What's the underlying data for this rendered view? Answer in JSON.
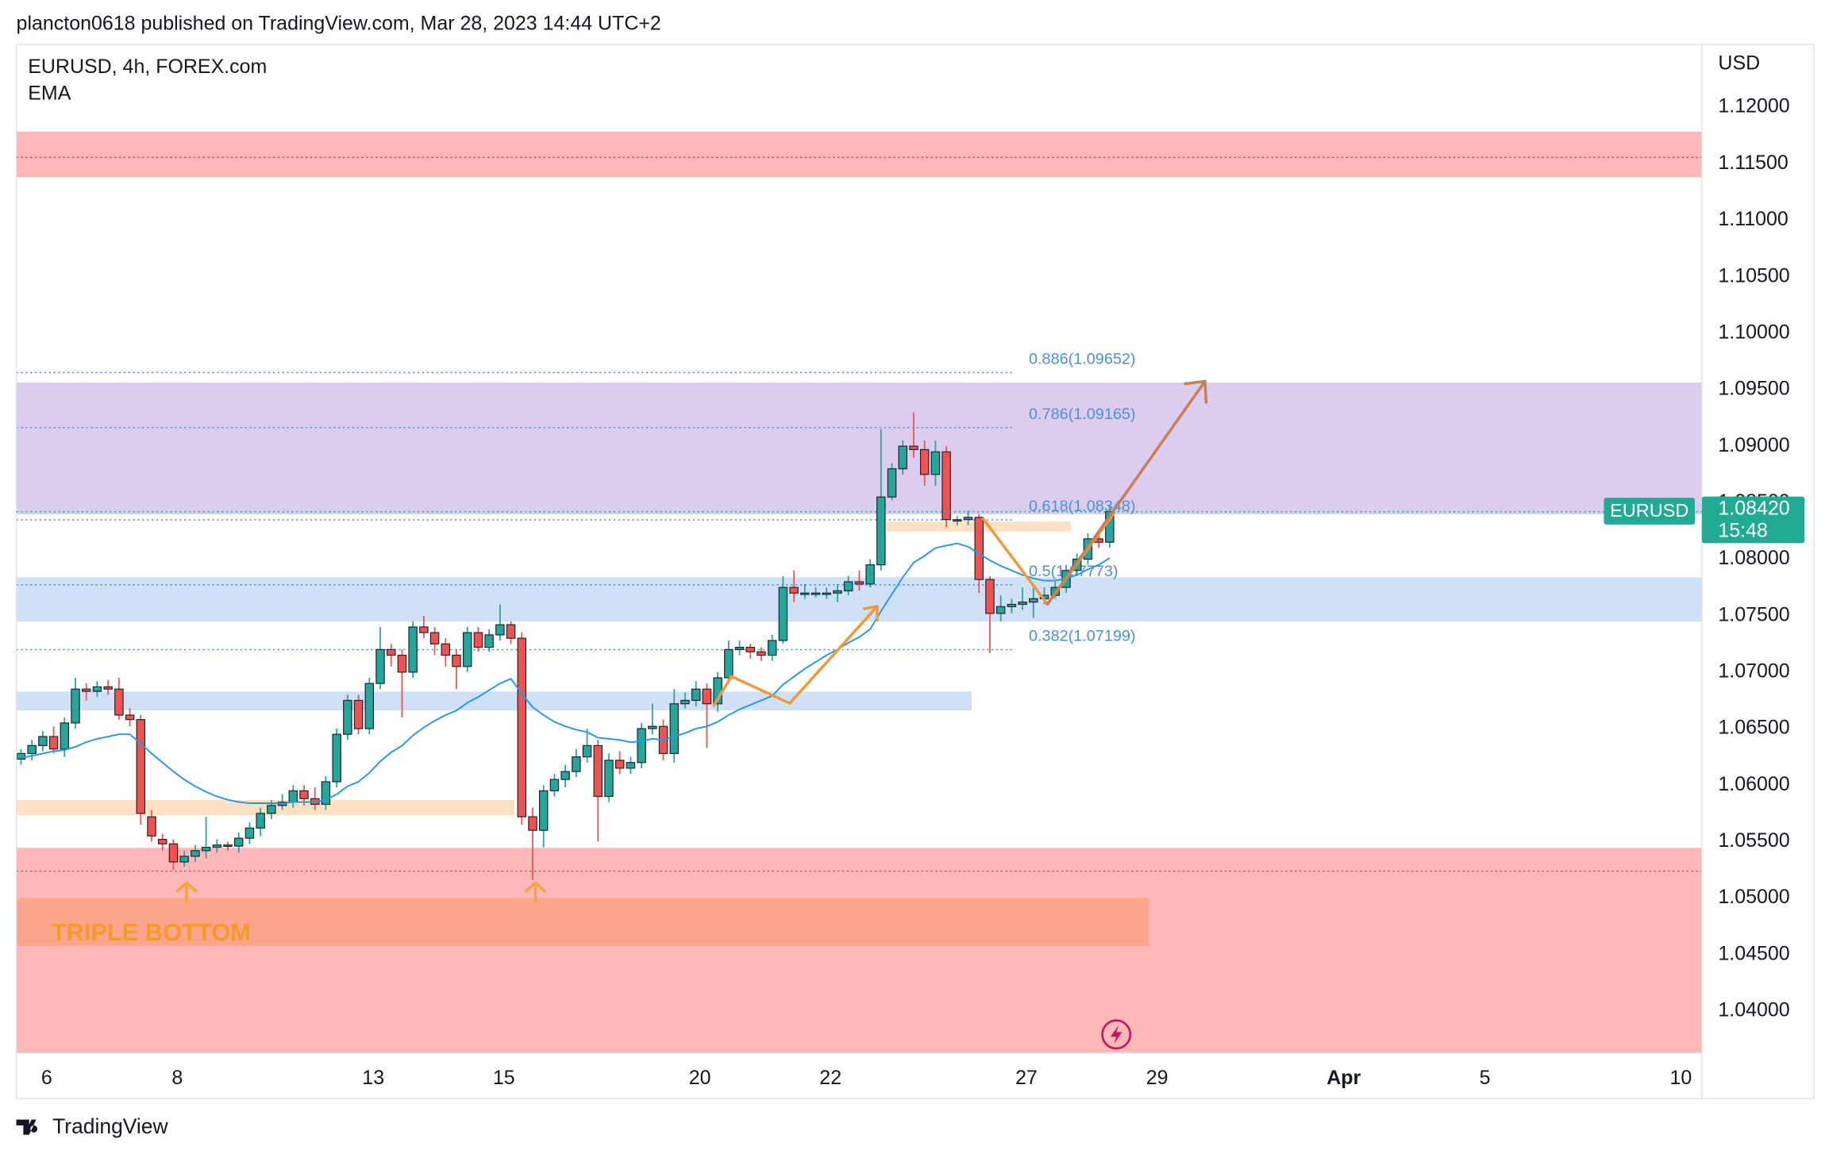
{
  "header": "plancton0618 published on TradingView.com, Mar 28, 2023 14:44 UTC+2",
  "footer": "TradingView",
  "chart_data": {
    "type": "candlestick",
    "title": "EURUSD, 4h, FOREX.com",
    "indicator": "EMA",
    "y_axis_label": "USD",
    "up_color": "#26a69a",
    "down_color": "#ef5350",
    "ema_color": "#2196f3",
    "grid": false,
    "open": [
      1.0623,
      1.0628,
      1.0635,
      1.0643,
      1.0632,
      1.0655,
      1.0685,
      1.0683,
      1.0687,
      1.0685,
      1.0662,
      1.0658,
      1.0572,
      1.0552,
      1.0548,
      1.0532,
      1.0537,
      1.0542,
      1.0545,
      1.0547,
      1.0546,
      1.0553,
      1.0562,
      1.0575,
      1.0582,
      1.0585,
      1.0595,
      1.0588,
      1.0583,
      1.0603,
      1.0645,
      1.0675,
      1.065,
      1.069,
      1.072,
      1.0715,
      1.07,
      1.074,
      1.0735,
      1.0725,
      1.0715,
      1.0705,
      1.0735,
      1.0722,
      1.0733,
      1.0742,
      1.073,
      1.0572,
      1.056,
      1.0595,
      1.0605,
      1.0612,
      1.0625,
      1.0635,
      1.059,
      1.0622,
      1.0615,
      1.062,
      1.065,
      1.0652,
      1.0628,
      1.0672,
      1.0675,
      1.0685,
      1.0672,
      1.0695,
      1.072,
      1.0722,
      1.0718,
      1.0715,
      1.0728,
      1.0775,
      1.077,
      1.077,
      1.077,
      1.077,
      1.0772,
      1.078,
      1.0778,
      1.0795,
      1.0855,
      1.088,
      1.09,
      1.0897,
      1.0875,
      1.0895,
      1.0835,
      1.0835,
      1.0837,
      1.0782,
      1.0752,
      1.0758,
      1.076,
      1.0762,
      1.0765,
      1.0768,
      1.0775,
      1.079,
      1.08,
      1.0818,
      1.0815
    ],
    "high": [
      1.0632,
      1.064,
      1.0648,
      1.0652,
      1.066,
      1.0695,
      1.069,
      1.0692,
      1.0693,
      1.0695,
      1.0668,
      1.0662,
      1.0578,
      1.0557,
      1.0552,
      1.0542,
      1.0547,
      1.0572,
      1.0552,
      1.055,
      1.0558,
      1.0567,
      1.058,
      1.0587,
      1.0592,
      1.06,
      1.06,
      1.0598,
      1.0608,
      1.065,
      1.068,
      1.068,
      1.0695,
      1.074,
      1.0725,
      1.072,
      1.0745,
      1.075,
      1.074,
      1.073,
      1.072,
      1.074,
      1.074,
      1.0738,
      1.076,
      1.0745,
      1.0735,
      1.058,
      1.06,
      1.061,
      1.0618,
      1.0632,
      1.065,
      1.064,
      1.0628,
      1.063,
      1.0625,
      1.0655,
      1.0672,
      1.0658,
      1.0685,
      1.0682,
      1.0692,
      1.069,
      1.07,
      1.0728,
      1.0728,
      1.0725,
      1.0722,
      1.0733,
      1.0785,
      1.079,
      1.0778,
      1.0775,
      1.0775,
      1.0778,
      1.0785,
      1.079,
      1.08,
      1.0915,
      1.0885,
      1.0905,
      1.093,
      1.0905,
      1.0905,
      1.09,
      1.0838,
      1.0843,
      1.084,
      1.0785,
      1.0768,
      1.0765,
      1.0775,
      1.0775,
      1.0775,
      1.078,
      1.0795,
      1.0805,
      1.0823,
      1.0822,
      1.0848
    ],
    "low": [
      1.0618,
      1.0622,
      1.063,
      1.0628,
      1.0625,
      1.065,
      1.0675,
      1.0678,
      1.068,
      1.0658,
      1.0652,
      1.0565,
      1.055,
      1.0542,
      1.0525,
      1.0528,
      1.0532,
      1.0535,
      1.054,
      1.0542,
      1.054,
      1.0548,
      1.0555,
      1.057,
      1.0578,
      1.058,
      1.0582,
      1.0578,
      1.0578,
      1.0598,
      1.064,
      1.0645,
      1.0645,
      1.0685,
      1.0705,
      1.066,
      1.0695,
      1.073,
      1.0715,
      1.0705,
      1.0685,
      1.07,
      1.0718,
      1.0718,
      1.0728,
      1.0725,
      1.0565,
      1.0516,
      1.0545,
      1.059,
      1.0598,
      1.0607,
      1.062,
      1.055,
      1.0585,
      1.061,
      1.061,
      1.0615,
      1.0645,
      1.0622,
      1.062,
      1.0668,
      1.067,
      1.0633,
      1.0665,
      1.069,
      1.0715,
      1.0712,
      1.071,
      1.071,
      1.0725,
      1.0762,
      1.0765,
      1.0766,
      1.0765,
      1.0762,
      1.0768,
      1.0772,
      1.0775,
      1.079,
      1.0852,
      1.0875,
      1.089,
      1.0865,
      1.0865,
      1.0828,
      1.083,
      1.083,
      1.077,
      1.0717,
      1.0745,
      1.0752,
      1.0755,
      1.0748,
      1.076,
      1.0765,
      1.077,
      1.0785,
      1.0795,
      1.081,
      1.081
    ],
    "close": [
      1.0628,
      1.0635,
      1.0643,
      1.0632,
      1.0655,
      1.0685,
      1.0683,
      1.0687,
      1.0685,
      1.0662,
      1.0658,
      1.0575,
      1.0555,
      1.0548,
      1.0532,
      1.0537,
      1.0542,
      1.0545,
      1.0547,
      1.0546,
      1.0553,
      1.0562,
      1.0575,
      1.0582,
      1.0585,
      1.0595,
      1.0588,
      1.0583,
      1.0603,
      1.0645,
      1.0675,
      1.065,
      1.069,
      1.072,
      1.0715,
      1.07,
      1.074,
      1.0735,
      1.0725,
      1.0715,
      1.0705,
      1.0735,
      1.0722,
      1.0733,
      1.0742,
      1.073,
      1.0572,
      1.056,
      1.0595,
      1.0605,
      1.0612,
      1.0625,
      1.0635,
      1.059,
      1.0622,
      1.0615,
      1.062,
      1.065,
      1.0652,
      1.0628,
      1.0672,
      1.0675,
      1.0685,
      1.0672,
      1.0695,
      1.072,
      1.0722,
      1.0718,
      1.0715,
      1.0728,
      1.0775,
      1.077,
      1.077,
      1.077,
      1.077,
      1.0772,
      1.078,
      1.0778,
      1.0795,
      1.0855,
      1.088,
      1.09,
      1.0897,
      1.0875,
      1.0895,
      1.0835,
      1.0835,
      1.0837,
      1.0782,
      1.0752,
      1.0758,
      1.076,
      1.0762,
      1.0765,
      1.0768,
      1.0775,
      1.079,
      1.08,
      1.0818,
      1.0815,
      1.0842
    ],
    "ema": [
      1.0624,
      1.0626,
      1.0628,
      1.063,
      1.0631,
      1.0634,
      1.0638,
      1.0641,
      1.0643,
      1.0645,
      1.0645,
      1.0637,
      1.0628,
      1.062,
      1.0612,
      1.0605,
      1.0599,
      1.0594,
      1.059,
      1.0587,
      1.0585,
      1.0584,
      1.0584,
      1.0584,
      1.0584,
      1.0585,
      1.0585,
      1.0585,
      1.0587,
      1.0592,
      1.0599,
      1.0603,
      1.0611,
      1.0621,
      1.0629,
      1.0635,
      1.0644,
      1.0651,
      1.0657,
      1.0662,
      1.0666,
      1.0673,
      1.0678,
      1.0684,
      1.069,
      1.0694,
      1.0681,
      1.0669,
      1.0662,
      1.0656,
      1.0652,
      1.0649,
      1.0647,
      1.0642,
      1.0641,
      1.064,
      1.0638,
      1.0639,
      1.0641,
      1.064,
      1.0643,
      1.0646,
      1.065,
      1.0652,
      1.0656,
      1.0662,
      1.0667,
      1.0671,
      1.0675,
      1.0679,
      1.0689,
      1.0696,
      1.0703,
      1.0709,
      1.0715,
      1.072,
      1.0726,
      1.0731,
      1.0738,
      1.0754,
      1.0769,
      1.0784,
      1.0797,
      1.0803,
      1.081,
      1.0812,
      1.0814,
      1.0811,
      1.0805,
      1.0799,
      1.0794,
      1.079,
      1.0786,
      1.0783,
      1.0781,
      1.0781,
      1.0783,
      1.0786,
      1.0791,
      1.0795,
      1.0801
    ],
    "ylim": [
      1.03628,
      1.12557
    ],
    "yticks": [
      {
        "value": 1.04,
        "label": "1.04000"
      },
      {
        "value": 1.045,
        "label": "1.04500"
      },
      {
        "value": 1.05,
        "label": "1.05000"
      },
      {
        "value": 1.055,
        "label": "1.05500"
      },
      {
        "value": 1.06,
        "label": "1.06000"
      },
      {
        "value": 1.065,
        "label": "1.06500"
      },
      {
        "value": 1.07,
        "label": "1.07000"
      },
      {
        "value": 1.075,
        "label": "1.07500"
      },
      {
        "value": 1.08,
        "label": "1.08000"
      },
      {
        "value": 1.085,
        "label": "1.08500"
      },
      {
        "value": 1.09,
        "label": "1.09000"
      },
      {
        "value": 1.095,
        "label": "1.09500"
      },
      {
        "value": 1.1,
        "label": "1.10000"
      },
      {
        "value": 1.105,
        "label": "1.10500"
      },
      {
        "value": 1.11,
        "label": "1.11000"
      },
      {
        "value": 1.115,
        "label": "1.11500"
      },
      {
        "value": 1.12,
        "label": "1.12000"
      }
    ],
    "xtick_labels": [
      "6",
      "8",
      "13",
      "15",
      "20",
      "22",
      "27",
      "29",
      "Apr",
      "5",
      "10"
    ],
    "zones": [
      {
        "low": 1.11381,
        "high": 1.11783,
        "color": "#ffb8b8"
      },
      {
        "low": 1.08397,
        "high": 1.09564,
        "color": "#dccdee"
      },
      {
        "low": 1.07448,
        "high": 1.0784,
        "color": "#d0e1f7"
      },
      {
        "low": 1.06663,
        "high": 1.06828,
        "color": "#cfe0f7"
      },
      {
        "low": 1.05734,
        "high": 1.05868,
        "color": "#fde1c2"
      },
      {
        "low": 1.08243,
        "high": 1.08335,
        "color": "#fde1c2"
      },
      {
        "low": 1.03628,
        "high": 1.05445,
        "color": "#ffb8b8"
      },
      {
        "low": 1.04578,
        "high": 1.05001,
        "color": "#fba58c"
      }
    ],
    "hlines": [
      {
        "value": 1.11556,
        "color": "#d63a4a"
      },
      {
        "value": 1.05239,
        "color": "#d63a4a"
      }
    ],
    "fib": [
      {
        "label": "0.886(1.09652)",
        "value": 1.09652
      },
      {
        "label": "0.786(1.09165)",
        "value": 1.09165
      },
      {
        "label": "0.618(1.08348)",
        "value": 1.08348
      },
      {
        "label": "0.5(1.07773)",
        "value": 1.07773
      },
      {
        "label": "0.382(1.07199)",
        "value": 1.07199
      }
    ],
    "annotation": "TRIPLE BOTTOM",
    "last_price": {
      "symbol": "EURUSD",
      "value": 1.0842,
      "label": "1.08420",
      "countdown": "15:48",
      "color": "#22ab94"
    }
  }
}
